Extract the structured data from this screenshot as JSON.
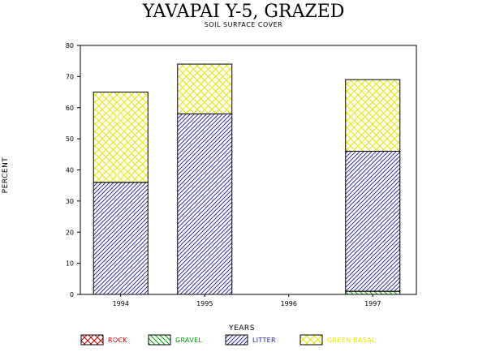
{
  "chart_data": {
    "type": "bar",
    "stacked": true,
    "title": "YAVAPAI Y-5, GRAZED",
    "subtitle": "SOIL SURFACE COVER",
    "xlabel": "YEARS",
    "ylabel": "PERCENT",
    "ylim": [
      0,
      80
    ],
    "yticks": [
      0,
      10,
      20,
      30,
      40,
      50,
      60,
      70,
      80
    ],
    "categories": [
      "1994",
      "1995",
      "1996",
      "1997"
    ],
    "series": [
      {
        "name": "ROCK",
        "values": [
          0,
          0,
          0,
          0
        ],
        "color": "#cc0000",
        "pattern": "crosshatch"
      },
      {
        "name": "GRAVEL",
        "values": [
          0,
          0,
          0,
          1
        ],
        "color": "#00a000",
        "pattern": "backslash"
      },
      {
        "name": "LITTER",
        "values": [
          36,
          58,
          0,
          45
        ],
        "color": "#1a1a9a",
        "pattern": "slash"
      },
      {
        "name": "GREEN BASAL",
        "values": [
          29,
          16,
          0,
          23
        ],
        "color": "#e6e600",
        "pattern": "crosshatch"
      }
    ],
    "legend_position": "bottom"
  }
}
